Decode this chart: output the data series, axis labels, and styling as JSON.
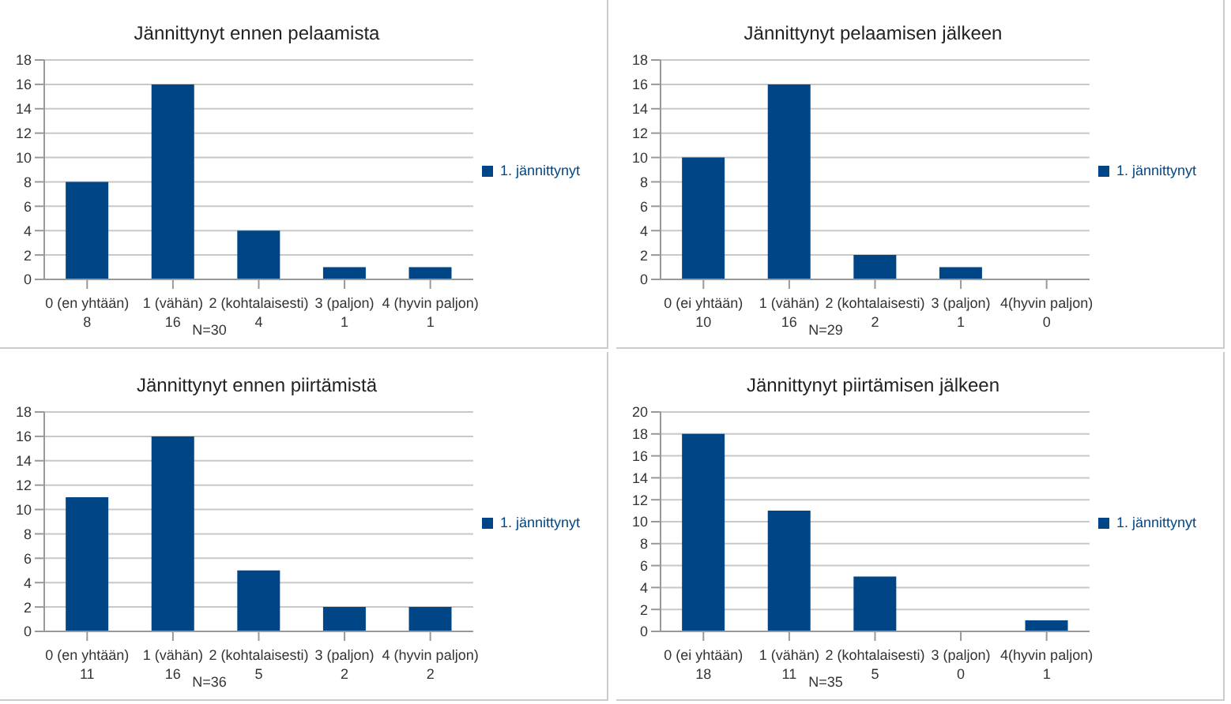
{
  "chart_data": [
    {
      "type": "bar",
      "title": "Jännittynyt ennen pelaamista",
      "categories": [
        "0 (en yhtään)",
        "1 (vähän)",
        "2 (kohtalaisesti)",
        "3 (paljon)",
        "4 (hyvin paljon)"
      ],
      "series": [
        {
          "name": "1. jännittynyt",
          "color": "#004586",
          "values": [
            8,
            16,
            4,
            1,
            1
          ]
        }
      ],
      "ylim": [
        0,
        18
      ],
      "yticks": [
        0,
        2,
        4,
        6,
        8,
        10,
        12,
        14,
        16,
        18
      ],
      "grid": "y",
      "legend": "right",
      "data_labels": true,
      "annotations": [
        "N=30"
      ]
    },
    {
      "type": "bar",
      "title": "Jännittynyt pelaamisen jälkeen",
      "categories": [
        "0 (ei yhtään)",
        "1 (vähän)",
        "2 (kohtalaisesti)",
        "3 (paljon)",
        "4(hyvin paljon)"
      ],
      "series": [
        {
          "name": "1. jännittynyt",
          "color": "#004586",
          "values": [
            10,
            16,
            2,
            1,
            0
          ]
        }
      ],
      "ylim": [
        0,
        18
      ],
      "yticks": [
        0,
        2,
        4,
        6,
        8,
        10,
        12,
        14,
        16,
        18
      ],
      "grid": "y",
      "legend": "right",
      "data_labels": true,
      "annotations": [
        "N=29"
      ]
    },
    {
      "type": "bar",
      "title": "Jännittynyt ennen piirtämistä",
      "categories": [
        "0 (en yhtään)",
        "1 (vähän)",
        "2 (kohtalaisesti)",
        "3 (paljon)",
        "4 (hyvin paljon)"
      ],
      "series": [
        {
          "name": "1. jännittynyt",
          "color": "#004586",
          "values": [
            11,
            16,
            5,
            2,
            2
          ]
        }
      ],
      "ylim": [
        0,
        18
      ],
      "yticks": [
        0,
        2,
        4,
        6,
        8,
        10,
        12,
        14,
        16,
        18
      ],
      "grid": "y",
      "legend": "right",
      "data_labels": true,
      "annotations": [
        "N=36"
      ]
    },
    {
      "type": "bar",
      "title": "Jännittynyt piirtämisen jälkeen",
      "categories": [
        "0 (ei yhtään)",
        "1 (vähän)",
        "2 (kohtalaisesti)",
        "3 (paljon)",
        "4(hyvin paljon)"
      ],
      "series": [
        {
          "name": "1. jännittynyt",
          "color": "#004586",
          "values": [
            18,
            11,
            5,
            0,
            1
          ]
        }
      ],
      "ylim": [
        0,
        20
      ],
      "yticks": [
        0,
        2,
        4,
        6,
        8,
        10,
        12,
        14,
        16,
        18,
        20
      ],
      "grid": "y",
      "legend": "right",
      "data_labels": true,
      "annotations": [
        "N=35"
      ]
    }
  ]
}
